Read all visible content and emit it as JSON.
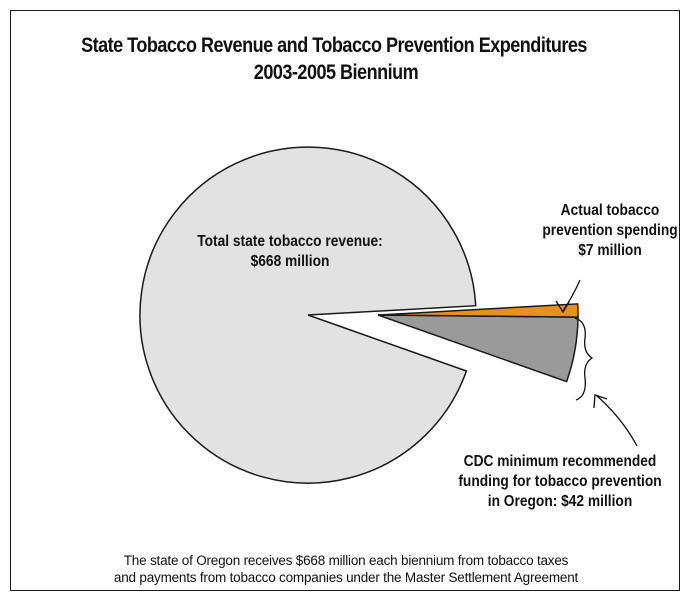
{
  "chart_data": {
    "type": "pie",
    "title_lines": [
      "State Tobacco Revenue and Tobacco Prevention Expenditures",
      "2003-2005 Biennium"
    ],
    "unit": "million dollars",
    "total": 668,
    "slices": [
      {
        "key": "revenue",
        "label_lines": [
          "Total state tobacco revenue:",
          "$668 million"
        ],
        "value": 668,
        "color": "#e2e2e2"
      },
      {
        "key": "actual",
        "label_lines": [
          "Actual tobacco",
          "prevention spending",
          "$7 million"
        ],
        "value": 7,
        "color": "#e8901c",
        "exploded": true
      },
      {
        "key": "cdc",
        "label_lines": [
          "CDC minimum recommended",
          "funding for tobacco prevention",
          "in Oregon: $42 million"
        ],
        "value": 42,
        "color": "#9a9a9a",
        "exploded": true
      }
    ],
    "caption_lines": [
      "The state of Oregon receives $668 million each biennium from tobacco taxes",
      "and payments from tobacco companies under the Master Settlement Agreement"
    ],
    "colors": {
      "outline": "#1a1a1a",
      "background": "#ffffff"
    }
  }
}
